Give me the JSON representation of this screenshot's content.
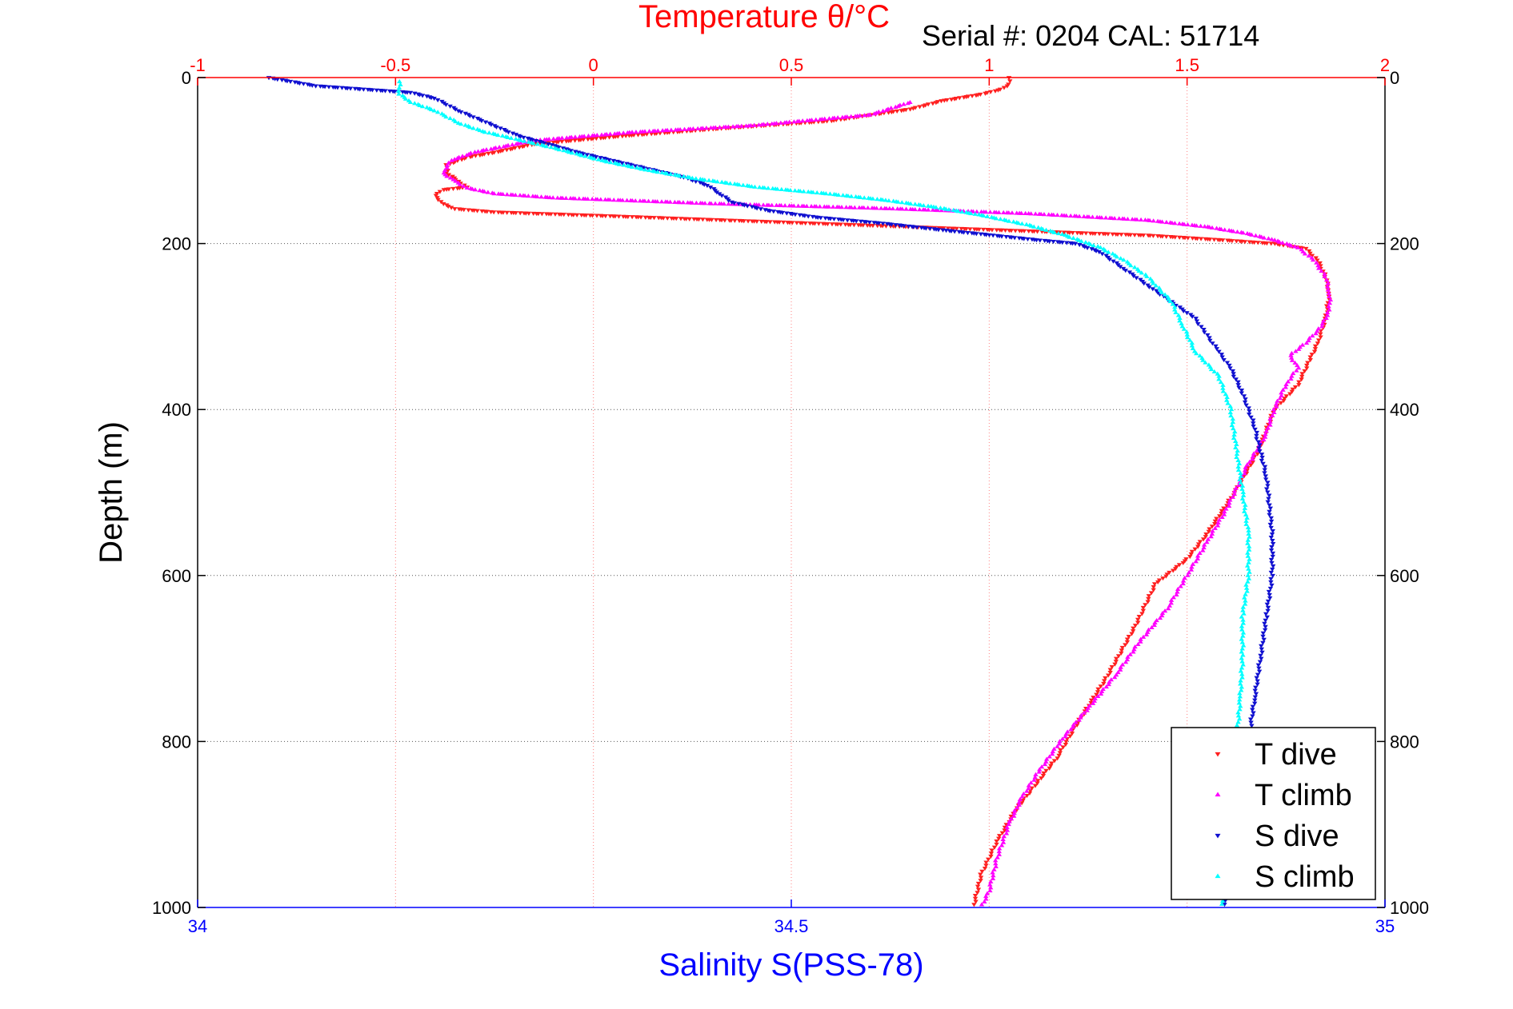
{
  "chart_data": {
    "type": "scatter",
    "title": "Temperature θ/°C",
    "annotation": "Serial #: 0204  CAL: 51714",
    "ylabel": "Depth (m)",
    "xlabel_bottom": "Salinity S(PSS-78)",
    "ylim": [
      0,
      1000
    ],
    "y_reversed": true,
    "xlim_top": [
      -1,
      2
    ],
    "xlim_bottom": [
      34,
      35
    ],
    "y_ticks": [
      "0",
      "200",
      "400",
      "600",
      "800",
      "1000"
    ],
    "x_ticks_top": [
      "-1",
      "-0.5",
      "0",
      "0.5",
      "1",
      "1.5",
      "2"
    ],
    "x_ticks_bottom": [
      "34",
      "34.5",
      "35"
    ],
    "grid": true,
    "legend_position": "bottom-right",
    "colors": {
      "t_dive": "#ff2020",
      "t_climb": "#ff00ff",
      "s_dive": "#1010d0",
      "s_climb": "#00ffff",
      "top_axis": "#ff0000",
      "bottom_axis": "#0000ff",
      "grid_temp": "#ff8080",
      "grid_depth": "#555555"
    },
    "series": [
      {
        "name": "T dive",
        "axis": "temperature",
        "marker": "triangle-down",
        "points": [
          [
            1.05,
            0
          ],
          [
            1.05,
            8
          ],
          [
            1.03,
            14
          ],
          [
            0.98,
            20
          ],
          [
            0.88,
            28
          ],
          [
            0.8,
            38
          ],
          [
            0.6,
            52
          ],
          [
            0.3,
            62
          ],
          [
            0.08,
            70
          ],
          [
            -0.15,
            80
          ],
          [
            -0.25,
            90
          ],
          [
            -0.32,
            96
          ],
          [
            -0.37,
            105
          ],
          [
            -0.37,
            115
          ],
          [
            -0.34,
            125
          ],
          [
            -0.32,
            132
          ],
          [
            -0.38,
            135
          ],
          [
            -0.4,
            142
          ],
          [
            -0.38,
            152
          ],
          [
            -0.35,
            158
          ],
          [
            -0.25,
            162
          ],
          [
            0.0,
            166
          ],
          [
            0.35,
            172
          ],
          [
            0.7,
            178
          ],
          [
            1.05,
            184
          ],
          [
            1.4,
            190
          ],
          [
            1.6,
            196
          ],
          [
            1.72,
            200
          ],
          [
            1.8,
            206
          ],
          [
            1.83,
            220
          ],
          [
            1.85,
            240
          ],
          [
            1.86,
            260
          ],
          [
            1.85,
            290
          ],
          [
            1.83,
            320
          ],
          [
            1.81,
            340
          ],
          [
            1.78,
            370
          ],
          [
            1.72,
            400
          ],
          [
            1.68,
            450
          ],
          [
            1.62,
            500
          ],
          [
            1.55,
            550
          ],
          [
            1.5,
            580
          ],
          [
            1.42,
            610
          ],
          [
            1.37,
            660
          ],
          [
            1.3,
            720
          ],
          [
            1.22,
            780
          ],
          [
            1.17,
            820
          ],
          [
            1.12,
            850
          ],
          [
            1.07,
            880
          ],
          [
            1.02,
            920
          ],
          [
            0.98,
            960
          ],
          [
            0.96,
            1000
          ]
        ]
      },
      {
        "name": "T climb",
        "axis": "temperature",
        "marker": "triangle-up",
        "points": [
          [
            0.8,
            30
          ],
          [
            0.7,
            45
          ],
          [
            0.4,
            58
          ],
          [
            0.1,
            66
          ],
          [
            -0.15,
            76
          ],
          [
            -0.3,
            90
          ],
          [
            -0.36,
            100
          ],
          [
            -0.38,
            115
          ],
          [
            -0.35,
            125
          ],
          [
            -0.32,
            133
          ],
          [
            -0.25,
            140
          ],
          [
            -0.1,
            145
          ],
          [
            0.3,
            152
          ],
          [
            0.75,
            158
          ],
          [
            1.1,
            164
          ],
          [
            1.4,
            172
          ],
          [
            1.55,
            180
          ],
          [
            1.65,
            188
          ],
          [
            1.72,
            196
          ],
          [
            1.78,
            205
          ],
          [
            1.82,
            220
          ],
          [
            1.85,
            240
          ],
          [
            1.86,
            260
          ],
          [
            1.86,
            280
          ],
          [
            1.84,
            300
          ],
          [
            1.8,
            320
          ],
          [
            1.76,
            335
          ],
          [
            1.78,
            350
          ],
          [
            1.75,
            370
          ],
          [
            1.72,
            400
          ],
          [
            1.7,
            430
          ],
          [
            1.65,
            470
          ],
          [
            1.6,
            520
          ],
          [
            1.55,
            560
          ],
          [
            1.5,
            600
          ],
          [
            1.45,
            640
          ],
          [
            1.38,
            680
          ],
          [
            1.32,
            720
          ],
          [
            1.25,
            760
          ],
          [
            1.18,
            800
          ],
          [
            1.12,
            840
          ],
          [
            1.08,
            870
          ],
          [
            1.05,
            900
          ],
          [
            1.02,
            940
          ],
          [
            1.0,
            980
          ],
          [
            0.98,
            1000
          ]
        ]
      },
      {
        "name": "S dive",
        "axis": "salinity",
        "marker": "triangle-down",
        "points": [
          [
            34.06,
            0
          ],
          [
            34.1,
            10
          ],
          [
            34.18,
            18
          ],
          [
            34.2,
            25
          ],
          [
            34.22,
            40
          ],
          [
            34.25,
            58
          ],
          [
            34.27,
            70
          ],
          [
            34.3,
            82
          ],
          [
            34.32,
            90
          ],
          [
            34.35,
            100
          ],
          [
            34.38,
            110
          ],
          [
            34.41,
            120
          ],
          [
            34.43,
            130
          ],
          [
            34.44,
            140
          ],
          [
            34.45,
            150
          ],
          [
            34.48,
            160
          ],
          [
            34.52,
            168
          ],
          [
            34.58,
            176
          ],
          [
            34.63,
            184
          ],
          [
            34.67,
            190
          ],
          [
            34.71,
            196
          ],
          [
            34.74,
            200
          ],
          [
            34.76,
            210
          ],
          [
            34.78,
            230
          ],
          [
            34.8,
            250
          ],
          [
            34.82,
            270
          ],
          [
            34.84,
            290
          ],
          [
            34.85,
            310
          ],
          [
            34.86,
            330
          ],
          [
            34.87,
            350
          ],
          [
            34.88,
            380
          ],
          [
            34.89,
            420
          ],
          [
            34.9,
            480
          ],
          [
            34.905,
            550
          ],
          [
            34.905,
            600
          ],
          [
            34.9,
            650
          ],
          [
            34.895,
            700
          ],
          [
            34.89,
            750
          ],
          [
            34.885,
            800
          ],
          [
            34.88,
            850
          ],
          [
            34.875,
            900
          ],
          [
            34.87,
            950
          ],
          [
            34.865,
            1000
          ]
        ]
      },
      {
        "name": "S climb",
        "axis": "salinity",
        "marker": "triangle-up",
        "points": [
          [
            34.17,
            5
          ],
          [
            34.17,
            20
          ],
          [
            34.18,
            30
          ],
          [
            34.2,
            40
          ],
          [
            34.22,
            55
          ],
          [
            34.24,
            65
          ],
          [
            34.27,
            75
          ],
          [
            34.3,
            85
          ],
          [
            34.34,
            100
          ],
          [
            34.38,
            112
          ],
          [
            34.42,
            122
          ],
          [
            34.47,
            132
          ],
          [
            34.53,
            140
          ],
          [
            34.58,
            148
          ],
          [
            34.62,
            156
          ],
          [
            34.66,
            166
          ],
          [
            34.7,
            178
          ],
          [
            34.73,
            190
          ],
          [
            34.76,
            205
          ],
          [
            34.78,
            220
          ],
          [
            34.8,
            240
          ],
          [
            34.82,
            270
          ],
          [
            34.83,
            300
          ],
          [
            34.84,
            330
          ],
          [
            34.86,
            360
          ],
          [
            34.87,
            400
          ],
          [
            34.875,
            450
          ],
          [
            34.88,
            500
          ],
          [
            34.885,
            550
          ],
          [
            34.885,
            600
          ],
          [
            34.88,
            650
          ],
          [
            34.88,
            700
          ],
          [
            34.878,
            750
          ],
          [
            34.875,
            800
          ],
          [
            34.872,
            850
          ],
          [
            34.87,
            900
          ],
          [
            34.866,
            950
          ],
          [
            34.862,
            1000
          ]
        ]
      }
    ]
  }
}
